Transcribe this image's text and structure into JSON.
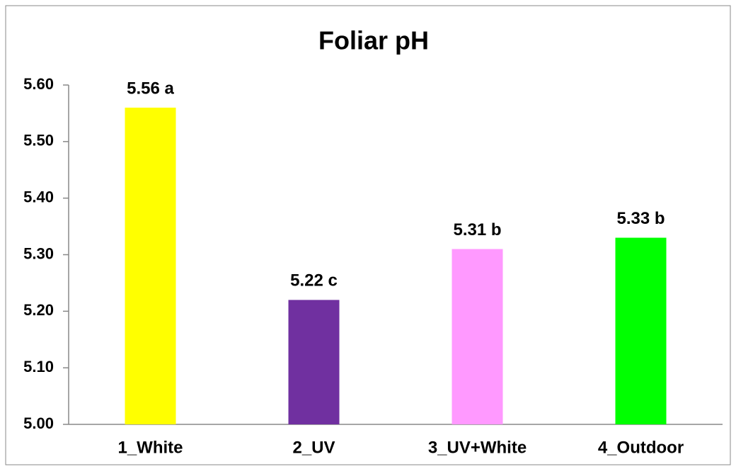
{
  "chart_data": {
    "type": "bar",
    "title": "Foliar pH",
    "categories": [
      "1_White",
      "2_UV",
      "3_UV+White",
      "4_Outdoor"
    ],
    "values": [
      5.56,
      5.22,
      5.31,
      5.33
    ],
    "value_labels": [
      "5.56 a",
      "5.22 c",
      "5.31 b",
      "5.33 b"
    ],
    "colors": [
      "#ffff00",
      "#7030a0",
      "#ff99ff",
      "#00ff00"
    ],
    "ylim": [
      5,
      5.6
    ],
    "yticks": [
      {
        "value": 5,
        "label": "5.00"
      },
      {
        "value": 5.1,
        "label": "5.10"
      },
      {
        "value": 5.2,
        "label": "5.20"
      },
      {
        "value": 5.3,
        "label": "5.30"
      },
      {
        "value": 5.4,
        "label": "5.40"
      },
      {
        "value": 5.5,
        "label": "5.50"
      },
      {
        "value": 5.6,
        "label": "5.60"
      }
    ],
    "grid": false
  }
}
